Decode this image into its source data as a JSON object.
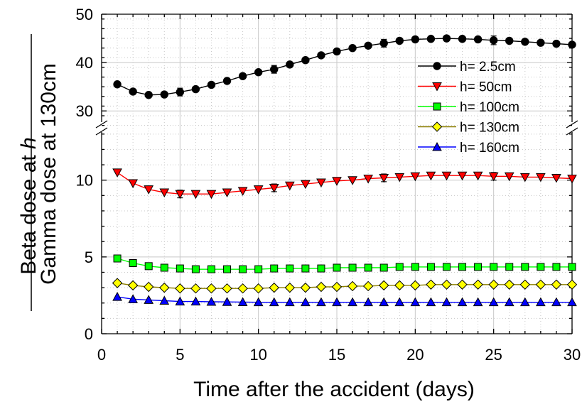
{
  "chart_data": {
    "type": "line",
    "xlabel": "Time after the accident (days)",
    "ylabel_numerator_prefix": "Beta dose at ",
    "ylabel_numerator_var": "h",
    "ylabel_denominator": "Gamma dose at 130cm",
    "xlim": [
      0,
      30
    ],
    "x_ticks": [
      "0",
      "5",
      "10",
      "15",
      "20",
      "25",
      "30"
    ],
    "y_ticks_lower": [
      "0",
      "5",
      "10"
    ],
    "y_ticks_upper": [
      "30",
      "40",
      "50"
    ],
    "ylim_lower": [
      0,
      13.5
    ],
    "ylim_upper": [
      26.8,
      50
    ],
    "axis_break": "broken y-axis between 13.5 and 26.8",
    "grid": true,
    "legend_position": "upper-right",
    "x": [
      1,
      2,
      3,
      4,
      5,
      6,
      7,
      8,
      9,
      10,
      11,
      12,
      13,
      14,
      15,
      16,
      17,
      18,
      19,
      20,
      21,
      22,
      23,
      24,
      25,
      26,
      27,
      28,
      29,
      30
    ],
    "series": [
      {
        "name": "h= 2.5cm",
        "color": "#000000",
        "marker": "circle",
        "values": [
          35.5,
          34.0,
          33.3,
          33.4,
          33.9,
          34.5,
          35.4,
          36.2,
          37.2,
          38.0,
          38.6,
          39.6,
          40.5,
          41.5,
          42.3,
          43.0,
          43.5,
          44.0,
          44.5,
          44.8,
          44.9,
          45.0,
          44.9,
          44.8,
          44.6,
          44.5,
          44.3,
          44.1,
          43.9,
          43.7
        ],
        "error_bars": {
          "5": 0.8,
          "11": 0.8,
          "18": 0.8,
          "25": 0.9
        }
      },
      {
        "name": "h= 50cm",
        "color": "#ff0000",
        "marker": "triangle-down",
        "values": [
          10.5,
          9.8,
          9.4,
          9.2,
          9.1,
          9.1,
          9.1,
          9.2,
          9.3,
          9.4,
          9.5,
          9.65,
          9.75,
          9.85,
          9.95,
          10.0,
          10.1,
          10.15,
          10.2,
          10.25,
          10.3,
          10.3,
          10.3,
          10.3,
          10.25,
          10.25,
          10.2,
          10.2,
          10.15,
          10.1
        ],
        "error_bars": {
          "5": 0.25,
          "11": 0.25,
          "18": 0.25,
          "25": 0.25
        }
      },
      {
        "name": "h= 100cm",
        "color": "#00ff00",
        "marker": "square",
        "values": [
          4.9,
          4.6,
          4.4,
          4.3,
          4.25,
          4.2,
          4.2,
          4.2,
          4.2,
          4.2,
          4.25,
          4.25,
          4.25,
          4.25,
          4.3,
          4.3,
          4.3,
          4.3,
          4.35,
          4.35,
          4.35,
          4.35,
          4.35,
          4.35,
          4.35,
          4.35,
          4.35,
          4.35,
          4.35,
          4.35
        ],
        "error_bars": {}
      },
      {
        "name": "h= 130cm",
        "color": "#ffff00",
        "marker": "diamond",
        "values": [
          3.3,
          3.15,
          3.05,
          3.0,
          2.95,
          2.95,
          2.95,
          2.95,
          2.95,
          2.95,
          3.0,
          3.0,
          3.0,
          3.05,
          3.05,
          3.1,
          3.1,
          3.15,
          3.15,
          3.15,
          3.2,
          3.2,
          3.2,
          3.2,
          3.2,
          3.2,
          3.2,
          3.2,
          3.2,
          3.2
        ],
        "error_bars": {}
      },
      {
        "name": "h= 160cm",
        "color": "#0000ff",
        "marker": "triangle-up",
        "values": [
          2.4,
          2.25,
          2.2,
          2.15,
          2.1,
          2.1,
          2.08,
          2.07,
          2.06,
          2.05,
          2.05,
          2.05,
          2.05,
          2.05,
          2.05,
          2.05,
          2.05,
          2.05,
          2.05,
          2.05,
          2.05,
          2.05,
          2.05,
          2.05,
          2.05,
          2.05,
          2.05,
          2.05,
          2.05,
          2.05
        ],
        "error_bars": {}
      }
    ]
  }
}
